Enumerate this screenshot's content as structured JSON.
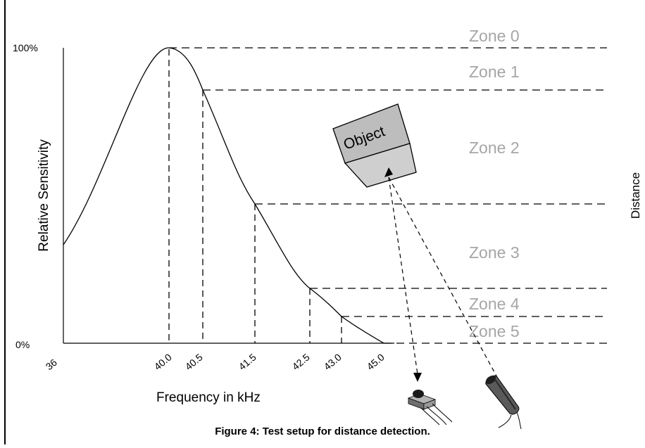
{
  "y_axis": {
    "label": "Relative Sensitivity",
    "max_label": "100%",
    "min_label": "0%"
  },
  "x_axis": {
    "label": "Frequency in kHz",
    "ticks": [
      "36",
      "40.0",
      "40.5",
      "41.5",
      "42.5",
      "43.0",
      "45.0"
    ]
  },
  "distance_label": "Distance",
  "zones": [
    "Zone 0",
    "Zone 1",
    "Zone 2",
    "Zone 3",
    "Zone 4",
    "Zone 5"
  ],
  "object_label": "Object",
  "caption": "Figure 4: Test setup for distance detection.",
  "colors": {
    "zone_text": "#a6a6a6",
    "line": "#000000",
    "object_top": "#bdbdbd",
    "object_bottom": "#cfcfcf"
  }
}
